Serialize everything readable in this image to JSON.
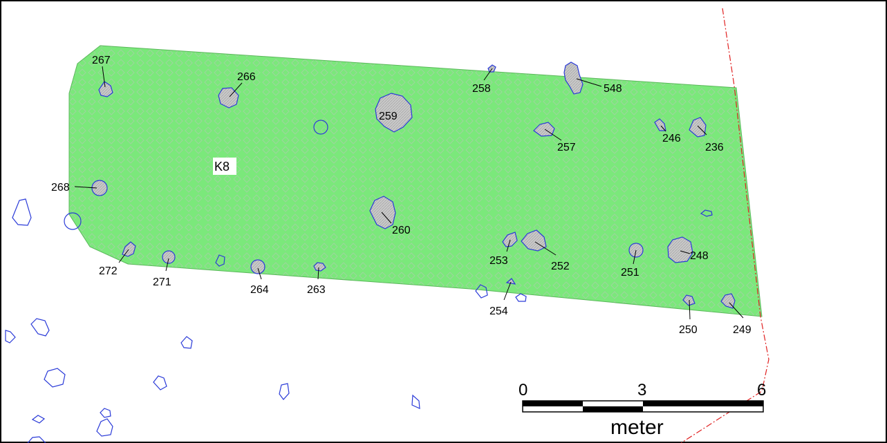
{
  "area_label": "K8",
  "features": [
    {
      "id": "267",
      "kind": "filled"
    },
    {
      "id": "266",
      "kind": "filled"
    },
    {
      "id": "259",
      "kind": "filled"
    },
    {
      "id": "258",
      "kind": "filled"
    },
    {
      "id": "548",
      "kind": "filled"
    },
    {
      "id": "257",
      "kind": "filled"
    },
    {
      "id": "246",
      "kind": "filled"
    },
    {
      "id": "236",
      "kind": "filled"
    },
    {
      "id": "268",
      "kind": "filled"
    },
    {
      "id": "260",
      "kind": "filled"
    },
    {
      "id": "253",
      "kind": "filled"
    },
    {
      "id": "252",
      "kind": "filled"
    },
    {
      "id": "251",
      "kind": "filled"
    },
    {
      "id": "248",
      "kind": "filled"
    },
    {
      "id": "272",
      "kind": "filled"
    },
    {
      "id": "271",
      "kind": "filled"
    },
    {
      "id": "264",
      "kind": "filled"
    },
    {
      "id": "263",
      "kind": "filled"
    },
    {
      "id": "254",
      "kind": "filled"
    },
    {
      "id": "250",
      "kind": "filled"
    },
    {
      "id": "249",
      "kind": "filled"
    }
  ],
  "scale_bar": {
    "ticks": [
      "0",
      "3",
      "6"
    ],
    "unit": "meter"
  },
  "colors": {
    "excavation_fill": "#7be87b",
    "feature_fill": "#c4c4c4",
    "feature_outline": "#2a3ad8",
    "boundary_line": "#e02020"
  }
}
